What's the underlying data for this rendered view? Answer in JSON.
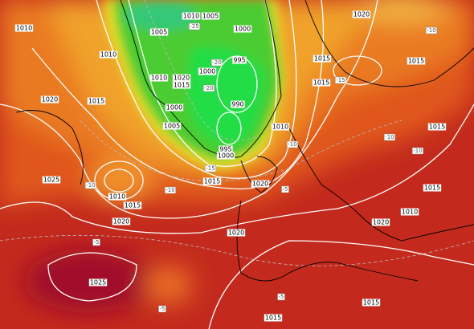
{
  "map": {
    "isobar_labels": [
      "1010",
      "1010",
      "1005",
      "1010",
      "1005",
      "1000",
      "1010",
      "1020",
      "1015",
      "1000",
      "995",
      "990",
      "1000",
      "1005",
      "995",
      "1000",
      "1010",
      "1015",
      "1015",
      "1015",
      "1020",
      "1020",
      "1015",
      "1025",
      "1010",
      "1015",
      "1020",
      "1015",
      "1020",
      "1015",
      "1015",
      "1010",
      "1020",
      "1020",
      "1025",
      "1015",
      "1015"
    ],
    "temperature_labels": [
      "-25",
      "-20",
      "-20",
      "-15",
      "-10",
      "-10",
      "-10",
      "-15",
      "-10",
      "-5",
      "-5",
      "-5",
      "-5",
      "-10",
      "-10"
    ]
  }
}
